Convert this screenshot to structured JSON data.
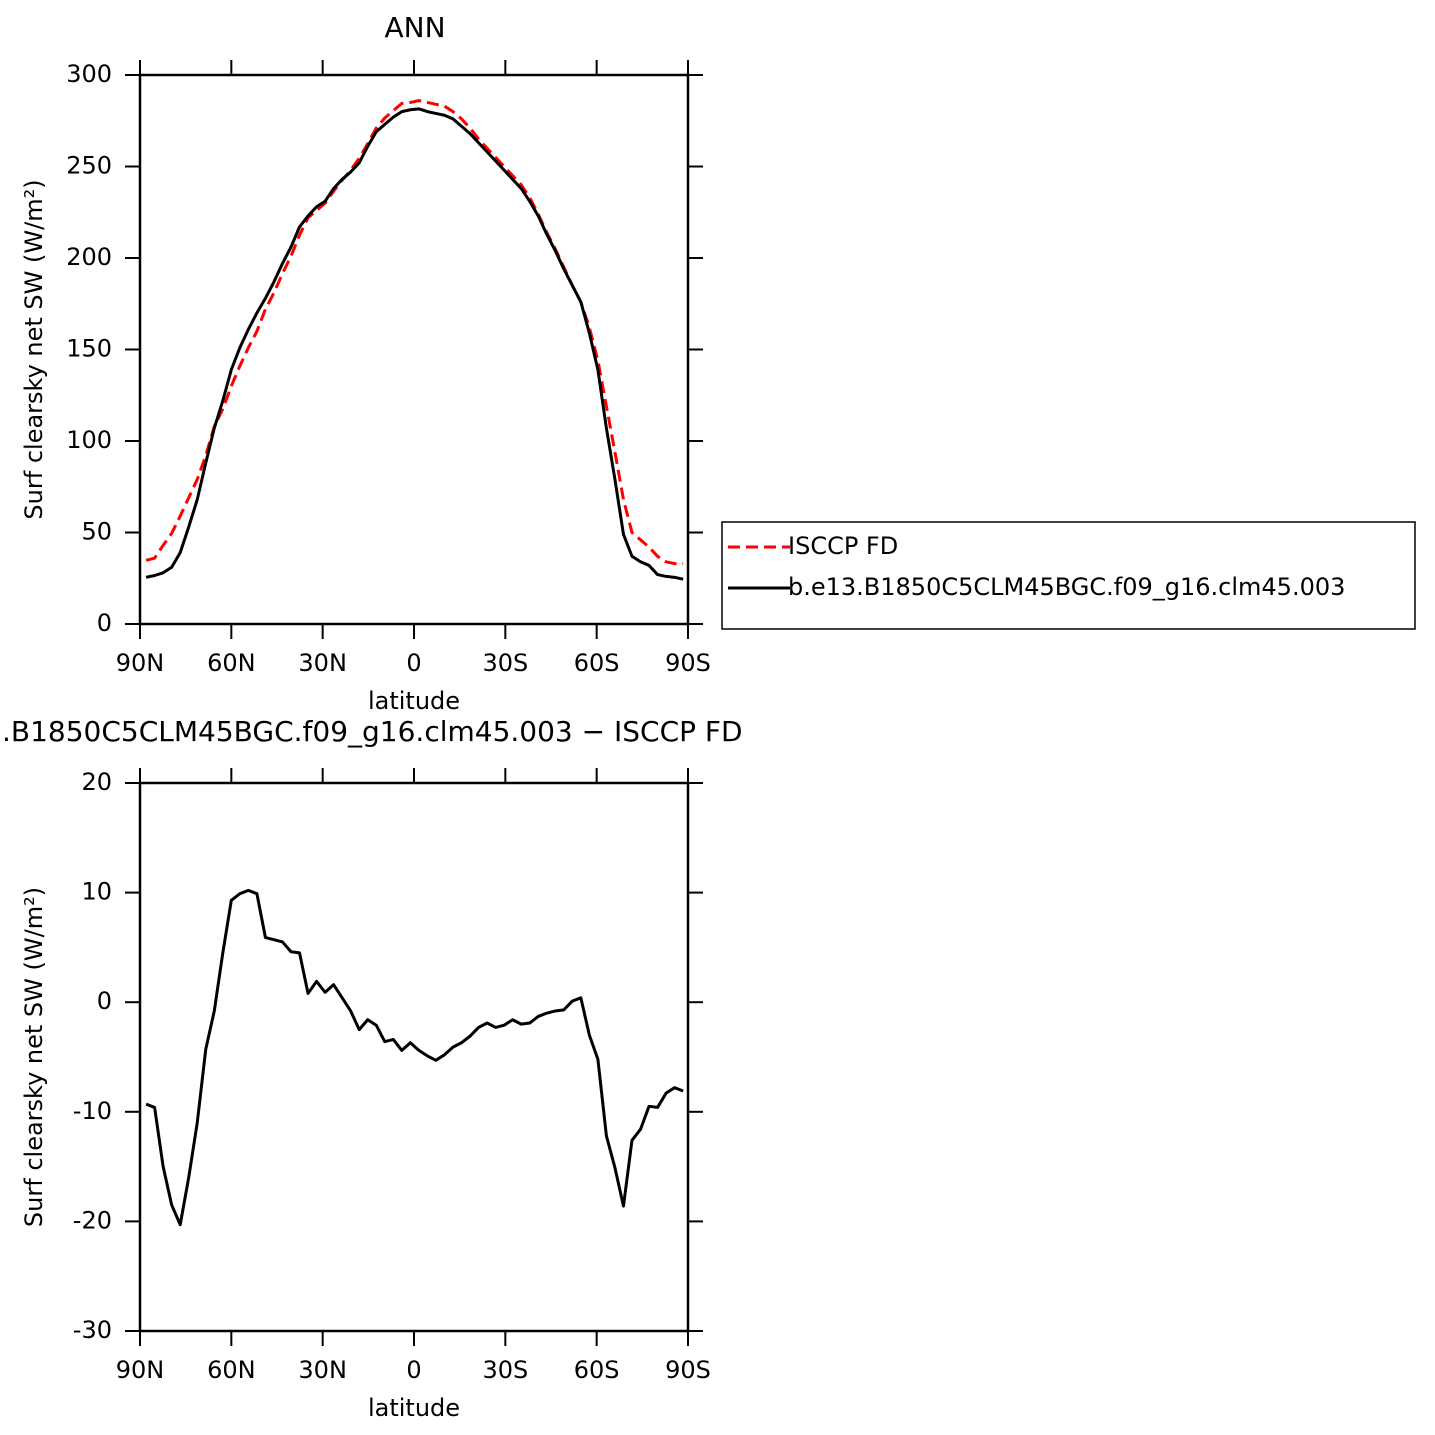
{
  "chart_data": [
    {
      "type": "line",
      "title": "ANN",
      "xlabel": "latitude",
      "ylabel": "Surf clearsky net SW (W/m²)",
      "x": [
        88,
        85.2,
        82.4,
        79.6,
        76.8,
        74,
        71.2,
        68.4,
        65.6,
        62.8,
        60,
        57.2,
        54.4,
        51.6,
        48.8,
        46,
        43.2,
        40.4,
        37.6,
        34.8,
        32,
        29.2,
        26.4,
        23.6,
        20.8,
        18,
        15.2,
        12.4,
        9.6,
        6.8,
        4,
        1.2,
        -1.6,
        -4.4,
        -7.2,
        -10,
        -12.8,
        -15.6,
        -18.4,
        -21.2,
        -24,
        -26.8,
        -29.6,
        -32.4,
        -35.2,
        -38,
        -40.8,
        -43.6,
        -46.4,
        -49.2,
        -52,
        -54.8,
        -57.6,
        -60.4,
        -63.2,
        -66,
        -68.8,
        -71.6,
        -74.4,
        -77.2,
        -80,
        -82.8,
        -85.6,
        -88.4
      ],
      "series": [
        {
          "name": "ISCCP FD",
          "color": "#ff0000",
          "linestyle": "dashed",
          "values": [
            34.8,
            36,
            43,
            49.5,
            59,
            69,
            79,
            92,
            108,
            117.5,
            130,
            141,
            151,
            160,
            172,
            181,
            191.5,
            201,
            212.5,
            222,
            226,
            230,
            236.5,
            242.5,
            248,
            254.5,
            262.5,
            271,
            276.5,
            280.5,
            284.5,
            285,
            286,
            285,
            284,
            283,
            280,
            276,
            271,
            265,
            260,
            255,
            250,
            245,
            240,
            233,
            224,
            214,
            205,
            195,
            185,
            176,
            162,
            144,
            119,
            94,
            68,
            50,
            46,
            42,
            37,
            34,
            33,
            33
          ]
        },
        {
          "name": "b.e13.B1850C5CLM45BGC.f09_g16.clm45.003",
          "color": "#000000",
          "linestyle": "solid",
          "values": [
            25.5,
            26.5,
            28,
            31,
            39,
            53,
            68,
            88,
            107,
            122,
            139,
            151,
            161,
            170,
            178,
            187,
            197,
            206,
            217,
            223,
            228,
            231,
            238,
            243,
            247,
            252,
            261,
            269,
            273,
            277,
            280,
            281,
            281.5,
            280,
            279,
            278,
            276,
            272,
            268,
            263,
            258,
            253,
            248,
            243,
            238,
            231,
            223,
            213,
            204,
            194,
            185,
            176,
            159,
            139,
            107,
            79,
            49,
            37,
            34,
            32,
            27,
            26,
            25.5,
            24.5
          ]
        }
      ],
      "xlim": [
        90,
        -90
      ],
      "xticks": [
        {
          "value": 90,
          "label": "90N"
        },
        {
          "value": 60,
          "label": "60N"
        },
        {
          "value": 30,
          "label": "30N"
        },
        0,
        {
          "value": -30,
          "label": "30S"
        },
        {
          "value": -60,
          "label": "60S"
        },
        {
          "value": -90,
          "label": "90S"
        }
      ],
      "ylim": [
        0,
        300
      ],
      "yticks": [
        0,
        50,
        100,
        150,
        200,
        250,
        300
      ],
      "legend": "right"
    },
    {
      "type": "line",
      "title": ".B1850C5CLM45BGC.f09_g16.clm45.003 − ISCCP FD",
      "xlabel": "latitude",
      "ylabel": "Surf clearsky net SW (W/m²)",
      "x": [
        88,
        85.2,
        82.4,
        79.6,
        76.8,
        74,
        71.2,
        68.4,
        65.6,
        62.8,
        60,
        57.2,
        54.4,
        51.6,
        48.8,
        46,
        43.2,
        40.4,
        37.6,
        34.8,
        32,
        29.2,
        26.4,
        23.6,
        20.8,
        18,
        15.2,
        12.4,
        9.6,
        6.8,
        4,
        1.2,
        -1.6,
        -4.4,
        -7.2,
        -10,
        -12.8,
        -15.6,
        -18.4,
        -21.2,
        -24,
        -26.8,
        -29.6,
        -32.4,
        -35.2,
        -38,
        -40.8,
        -43.6,
        -46.4,
        -49.2,
        -52,
        -54.8,
        -57.6,
        -60.4,
        -63.2,
        -66,
        -68.8,
        -71.6,
        -74.4,
        -77.2,
        -80,
        -82.8,
        -85.6,
        -88.4
      ],
      "series": [
        {
          "color": "#000000",
          "linestyle": "solid",
          "values": [
            -9.3,
            -9.6,
            -15,
            -18.5,
            -20.3,
            -16,
            -11,
            -4.3,
            -0.8,
            4.5,
            9.3,
            9.9,
            10.2,
            9.9,
            5.9,
            5.7,
            5.5,
            4.6,
            4.5,
            0.8,
            1.9,
            0.9,
            1.6,
            0.4,
            -0.8,
            -2.5,
            -1.6,
            -2.1,
            -3.6,
            -3.4,
            -4.4,
            -3.7,
            -4.4,
            -4.9,
            -5.3,
            -4.8,
            -4.1,
            -3.7,
            -3.1,
            -2.3,
            -1.9,
            -2.3,
            -2.1,
            -1.6,
            -2,
            -1.9,
            -1.3,
            -1,
            -0.8,
            -0.7,
            0.1,
            0.4,
            -3,
            -5.2,
            -12.2,
            -15.1,
            -18.6,
            -12.6,
            -11.6,
            -9.5,
            -9.6,
            -8.3,
            -7.8,
            -8.1
          ]
        }
      ],
      "xlim": [
        90,
        -90
      ],
      "xticks": [
        {
          "value": 90,
          "label": "90N"
        },
        {
          "value": 60,
          "label": "60N"
        },
        {
          "value": 30,
          "label": "30N"
        },
        0,
        {
          "value": -30,
          "label": "30S"
        },
        {
          "value": -60,
          "label": "60S"
        },
        {
          "value": -90,
          "label": "90S"
        }
      ],
      "ylim": [
        -30,
        20
      ],
      "yticks": [
        -30,
        -20,
        -10,
        0,
        10,
        20
      ]
    }
  ]
}
